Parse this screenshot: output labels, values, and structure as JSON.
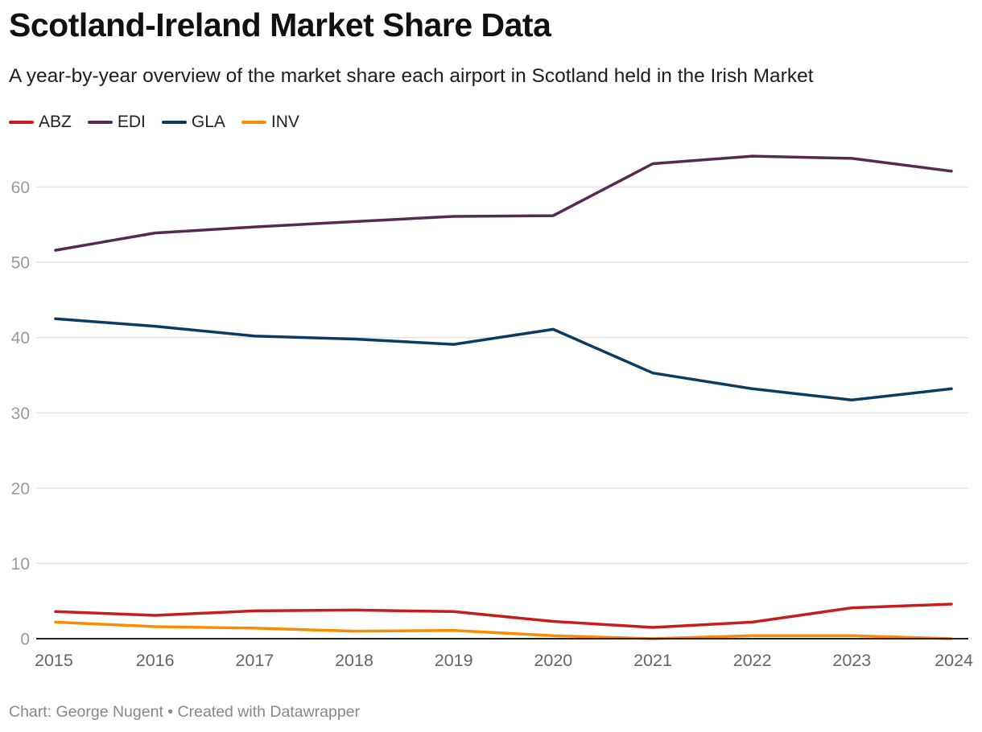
{
  "header": {
    "title": "Scotland-Ireland Market Share Data",
    "subtitle": "A year-by-year overview of the market share each airport in Scotland held in the Irish Market"
  },
  "footer": {
    "text": "Chart: George Nugent • Created with Datawrapper"
  },
  "chart_data": {
    "type": "line",
    "title": "Scotland-Ireland Market Share Data",
    "subtitle": "A year-by-year overview of the market share each airport in Scotland held in the Irish Market",
    "xlabel": "",
    "ylabel": "",
    "x": [
      "2015",
      "2016",
      "2017",
      "2018",
      "2019",
      "2020",
      "2021",
      "2022",
      "2023",
      "2024"
    ],
    "ylim": [
      0,
      65
    ],
    "yticks": [
      0,
      10,
      20,
      30,
      40,
      50,
      60
    ],
    "grid": true,
    "legend_position": "top-left",
    "series": [
      {
        "name": "ABZ",
        "color": "#c71e1d",
        "values": [
          3.6,
          3.1,
          3.7,
          3.8,
          3.6,
          2.3,
          1.5,
          2.2,
          4.1,
          4.6
        ]
      },
      {
        "name": "EDI",
        "color": "#542a4e",
        "values": [
          51.6,
          53.9,
          54.7,
          55.4,
          56.1,
          56.2,
          63.1,
          64.1,
          63.8,
          62.1
        ]
      },
      {
        "name": "GLA",
        "color": "#0b3b60",
        "values": [
          42.5,
          41.5,
          40.2,
          39.8,
          39.1,
          41.1,
          35.3,
          33.2,
          31.7,
          33.2
        ]
      },
      {
        "name": "INV",
        "color": "#fa8c00",
        "values": [
          2.2,
          1.6,
          1.4,
          1.0,
          1.1,
          0.4,
          0.0,
          0.4,
          0.4,
          0.0
        ]
      }
    ]
  }
}
